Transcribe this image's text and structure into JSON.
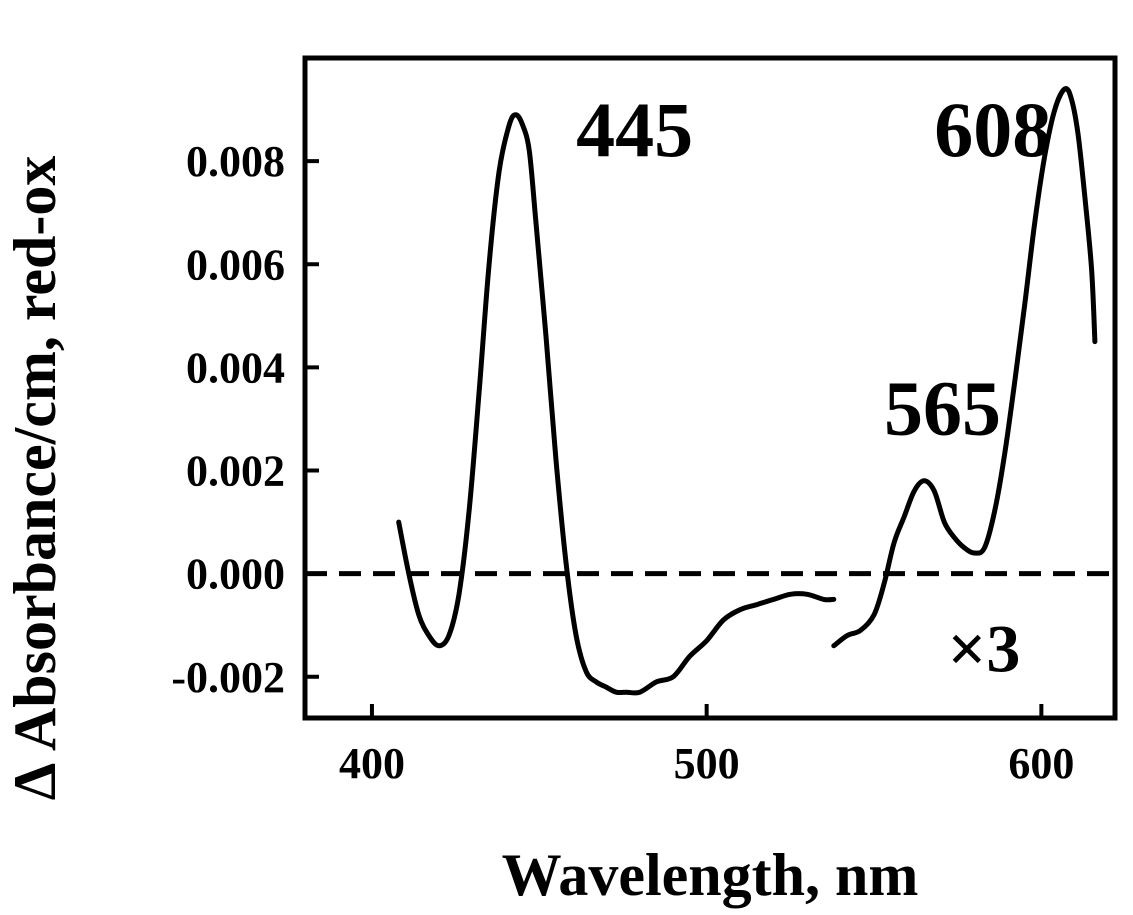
{
  "chart_data": {
    "type": "line",
    "xlabel": "Wavelength, nm",
    "ylabel": "Δ Absorbance/cm, red-ox",
    "xlim": [
      380,
      622
    ],
    "ylim": [
      -0.0028,
      0.01
    ],
    "xticks": [
      400,
      500,
      600
    ],
    "yticks": [
      -0.002,
      0,
      0.002,
      0.004,
      0.006,
      0.008
    ],
    "ytick_labels": [
      "-0.002",
      "0.000",
      "0.002",
      "0.004",
      "0.006",
      "0.008"
    ],
    "xtick_labels": [
      "400",
      "500",
      "600"
    ],
    "zero_line": {
      "y": 0,
      "style": "dashed"
    },
    "grid": false,
    "series": [
      {
        "x": [
          408,
          411,
          414,
          417,
          420,
          423,
          426,
          429,
          432,
          435,
          438,
          441,
          443,
          445,
          447,
          449,
          452,
          455,
          458,
          461,
          464,
          467,
          470,
          473,
          476,
          480,
          485,
          490,
          495,
          500,
          505,
          510,
          515,
          520,
          525,
          530,
          535,
          538
        ],
        "y": [
          0.001,
          0.0,
          -0.0008,
          -0.0012,
          -0.0014,
          -0.0012,
          -0.0004,
          0.0012,
          0.0035,
          0.006,
          0.0078,
          0.0087,
          0.0089,
          0.0087,
          0.0082,
          0.0068,
          0.0046,
          0.0022,
          0.0002,
          -0.0012,
          -0.0019,
          -0.0021,
          -0.0022,
          -0.0023,
          -0.0023,
          -0.0023,
          -0.0021,
          -0.002,
          -0.0016,
          -0.0013,
          -0.0009,
          -0.0007,
          -0.0006,
          -0.0005,
          -0.0004,
          -0.0004,
          -0.0005,
          -0.0005
        ]
      },
      {
        "x": [
          538,
          542,
          546,
          550,
          553,
          556,
          559,
          562,
          565,
          568,
          571,
          574,
          577,
          580,
          583,
          586,
          589,
          592,
          595,
          598,
          601,
          604,
          607,
          609,
          611,
          613,
          615,
          616
        ],
        "y": [
          -0.0014,
          -0.0012,
          -0.0011,
          -0.0008,
          -0.0002,
          0.0006,
          0.0011,
          0.0016,
          0.0018,
          0.0016,
          0.001,
          0.0007,
          0.0005,
          0.0004,
          0.0005,
          0.0012,
          0.0023,
          0.0037,
          0.0052,
          0.0068,
          0.0081,
          0.009,
          0.0094,
          0.0092,
          0.0085,
          0.0073,
          0.0059,
          0.0045
        ]
      }
    ],
    "annotations": [
      {
        "text": "445",
        "x": 461,
        "y": 0.0081
      },
      {
        "text": "608",
        "x": 568,
        "y": 0.0081
      },
      {
        "text": "565",
        "x": 553,
        "y": 0.0027
      },
      {
        "text": "×3",
        "x": 572,
        "y": -0.0019
      }
    ]
  }
}
